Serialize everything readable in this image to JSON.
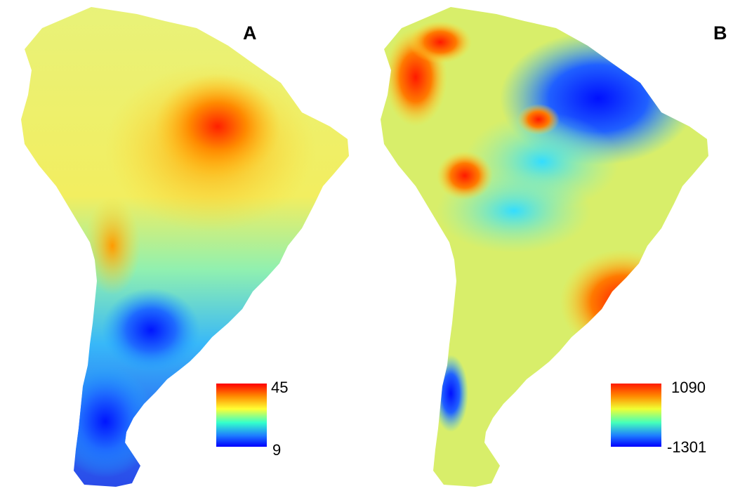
{
  "panels": [
    {
      "label": "A",
      "legend": {
        "max": "45",
        "min": "9"
      }
    },
    {
      "label": "B",
      "legend": {
        "max": "1090",
        "min": "-1301"
      }
    }
  ],
  "colors": {
    "high": "#ff0000",
    "mid": "#ffff33",
    "low": "#0000ff"
  }
}
